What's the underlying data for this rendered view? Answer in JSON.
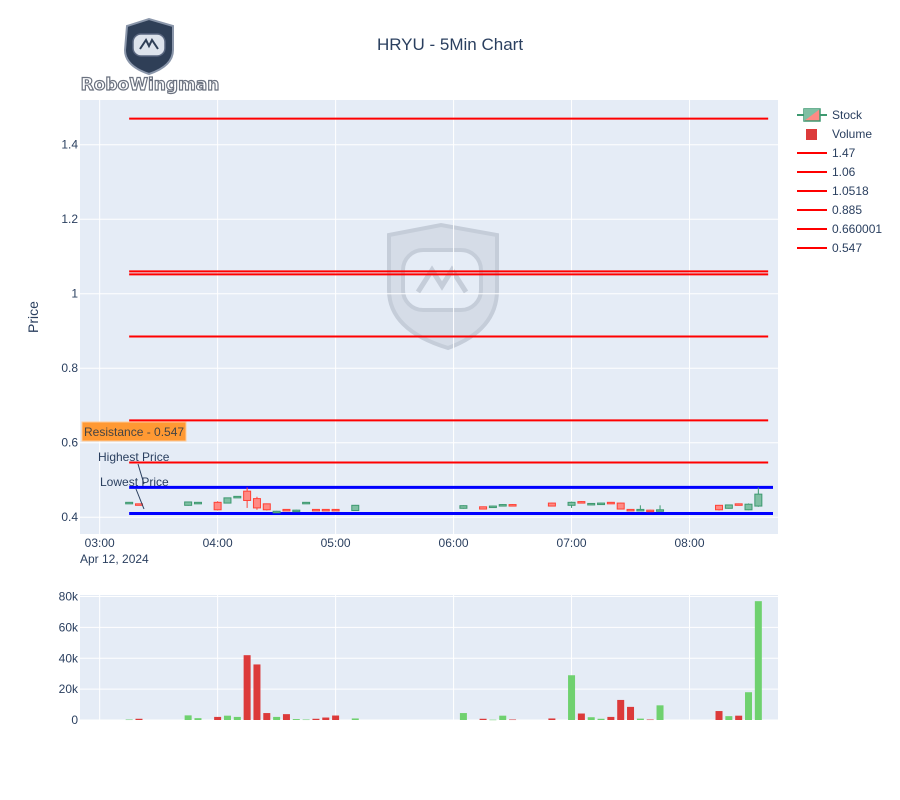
{
  "title": "HRYU - 5Min Chart",
  "logo": {
    "text": "RoboWingman",
    "icon": "astronaut-helmet-icon"
  },
  "colors": {
    "plot_bg": "#e5ecf6",
    "grid": "#ffffff",
    "up": "#3d9970",
    "down": "#ff4136",
    "vol_up": "#6fd16f",
    "vol_down": "#dc3a3a",
    "level_line": "#ff0000",
    "range_line": "#0000ff",
    "annotation_bg": "#ff9933"
  },
  "legend": [
    {
      "label": "Stock",
      "kind": "candle"
    },
    {
      "label": "Volume",
      "kind": "bar"
    },
    {
      "label": "1.47",
      "kind": "line"
    },
    {
      "label": "1.06",
      "kind": "line"
    },
    {
      "label": "1.0518",
      "kind": "line"
    },
    {
      "label": "0.885",
      "kind": "line"
    },
    {
      "label": "0.660001",
      "kind": "line"
    },
    {
      "label": "0.547",
      "kind": "line"
    }
  ],
  "annotations": {
    "resistance": "Resistance - 0.547",
    "highest": "Highest Price",
    "lowest": "Lowest Price"
  },
  "chart_data": {
    "type": "candlestick",
    "title": "HRYU - 5Min Chart",
    "ylabel": "Price",
    "date_label": "Apr 12, 2024",
    "x_range": [
      "02:50",
      "08:45"
    ],
    "x_ticks": [
      "03:00",
      "04:00",
      "05:00",
      "06:00",
      "07:00",
      "08:00"
    ],
    "y_range": [
      0.355,
      1.52
    ],
    "y_ticks": [
      {
        "v": 0.4,
        "label": "0.4"
      },
      {
        "v": 0.6,
        "label": "0.6"
      },
      {
        "v": 0.8,
        "label": "0.8"
      },
      {
        "v": 1.0,
        "label": "1"
      },
      {
        "v": 1.2,
        "label": "1.2"
      },
      {
        "v": 1.4,
        "label": "1.4"
      }
    ],
    "levels": [
      1.47,
      1.06,
      1.0518,
      0.885,
      0.660001,
      0.547
    ],
    "levels_span": [
      "03:15",
      "08:40"
    ],
    "highest_price": 0.48,
    "lowest_price": 0.41,
    "candles": [
      {
        "t": "03:15",
        "o": 0.44,
        "h": 0.441,
        "c": 0.44,
        "l": 0.439,
        "v": 300
      },
      {
        "t": "03:20",
        "o": 0.436,
        "h": 0.437,
        "c": 0.434,
        "l": 0.433,
        "v": 800
      },
      {
        "t": "03:45",
        "o": 0.432,
        "h": 0.442,
        "c": 0.441,
        "l": 0.431,
        "v": 3000
      },
      {
        "t": "03:50",
        "o": 0.44,
        "h": 0.441,
        "c": 0.44,
        "l": 0.439,
        "v": 1200
      },
      {
        "t": "04:00",
        "o": 0.44,
        "h": 0.443,
        "c": 0.42,
        "l": 0.418,
        "v": 2000
      },
      {
        "t": "04:05",
        "o": 0.438,
        "h": 0.453,
        "c": 0.452,
        "l": 0.437,
        "v": 2800
      },
      {
        "t": "04:10",
        "o": 0.455,
        "h": 0.457,
        "c": 0.456,
        "l": 0.454,
        "v": 2000
      },
      {
        "t": "04:15",
        "o": 0.47,
        "h": 0.48,
        "c": 0.445,
        "l": 0.425,
        "v": 42000
      },
      {
        "t": "04:20",
        "o": 0.45,
        "h": 0.455,
        "c": 0.425,
        "l": 0.42,
        "v": 36000
      },
      {
        "t": "04:25",
        "o": 0.436,
        "h": 0.437,
        "c": 0.42,
        "l": 0.418,
        "v": 4500
      },
      {
        "t": "04:30",
        "o": 0.415,
        "h": 0.417,
        "c": 0.416,
        "l": 0.414,
        "v": 2000
      },
      {
        "t": "04:35",
        "o": 0.421,
        "h": 0.422,
        "c": 0.418,
        "l": 0.417,
        "v": 3800
      },
      {
        "t": "04:40",
        "o": 0.418,
        "h": 0.42,
        "c": 0.419,
        "l": 0.417,
        "v": 600
      },
      {
        "t": "04:45",
        "o": 0.44,
        "h": 0.441,
        "c": 0.44,
        "l": 0.439,
        "v": 300
      },
      {
        "t": "04:50",
        "o": 0.421,
        "h": 0.422,
        "c": 0.418,
        "l": 0.417,
        "v": 800
      },
      {
        "t": "04:55",
        "o": 0.421,
        "h": 0.422,
        "c": 0.418,
        "l": 0.417,
        "v": 1600
      },
      {
        "t": "05:00",
        "o": 0.421,
        "h": 0.422,
        "c": 0.418,
        "l": 0.417,
        "v": 2900
      },
      {
        "t": "05:10",
        "o": 0.418,
        "h": 0.433,
        "c": 0.432,
        "l": 0.417,
        "v": 1000
      },
      {
        "t": "06:05",
        "o": 0.424,
        "h": 0.432,
        "c": 0.431,
        "l": 0.423,
        "v": 4500
      },
      {
        "t": "06:15",
        "o": 0.428,
        "h": 0.429,
        "c": 0.422,
        "l": 0.421,
        "v": 800
      },
      {
        "t": "06:20",
        "o": 0.43,
        "h": 0.431,
        "c": 0.43,
        "l": 0.429,
        "v": 200
      },
      {
        "t": "06:25",
        "o": 0.433,
        "h": 0.435,
        "c": 0.434,
        "l": 0.432,
        "v": 2800
      },
      {
        "t": "06:30",
        "o": 0.434,
        "h": 0.435,
        "c": 0.432,
        "l": 0.431,
        "v": 300
      },
      {
        "t": "06:50",
        "o": 0.438,
        "h": 0.439,
        "c": 0.43,
        "l": 0.429,
        "v": 1000
      },
      {
        "t": "07:00",
        "o": 0.432,
        "h": 0.442,
        "c": 0.44,
        "l": 0.425,
        "v": 29000
      },
      {
        "t": "07:05",
        "o": 0.442,
        "h": 0.443,
        "c": 0.438,
        "l": 0.437,
        "v": 4200
      },
      {
        "t": "07:10",
        "o": 0.437,
        "h": 0.438,
        "c": 0.437,
        "l": 0.436,
        "v": 1800
      },
      {
        "t": "07:15",
        "o": 0.438,
        "h": 0.439,
        "c": 0.438,
        "l": 0.437,
        "v": 800
      },
      {
        "t": "07:20",
        "o": 0.44,
        "h": 0.441,
        "c": 0.438,
        "l": 0.437,
        "v": 2000
      },
      {
        "t": "07:25",
        "o": 0.438,
        "h": 0.439,
        "c": 0.422,
        "l": 0.421,
        "v": 13000
      },
      {
        "t": "07:30",
        "o": 0.421,
        "h": 0.422,
        "c": 0.418,
        "l": 0.417,
        "v": 8500
      },
      {
        "t": "07:35",
        "o": 0.42,
        "h": 0.432,
        "c": 0.421,
        "l": 0.417,
        "v": 900
      },
      {
        "t": "07:40",
        "o": 0.419,
        "h": 0.42,
        "c": 0.418,
        "l": 0.417,
        "v": 300
      },
      {
        "t": "07:45",
        "o": 0.418,
        "h": 0.432,
        "c": 0.42,
        "l": 0.416,
        "v": 9500
      },
      {
        "t": "08:15",
        "o": 0.432,
        "h": 0.433,
        "c": 0.42,
        "l": 0.418,
        "v": 5800
      },
      {
        "t": "08:20",
        "o": 0.424,
        "h": 0.434,
        "c": 0.433,
        "l": 0.423,
        "v": 2500
      },
      {
        "t": "08:25",
        "o": 0.436,
        "h": 0.437,
        "c": 0.433,
        "l": 0.432,
        "v": 2800
      },
      {
        "t": "08:30",
        "o": 0.42,
        "h": 0.437,
        "c": 0.435,
        "l": 0.419,
        "v": 18000
      },
      {
        "t": "08:35",
        "o": 0.43,
        "h": 0.48,
        "c": 0.462,
        "l": 0.428,
        "v": 77000
      }
    ],
    "volume_range": [
      0,
      81000
    ],
    "volume_ticks": [
      {
        "v": 0,
        "label": "0"
      },
      {
        "v": 20000,
        "label": "20k"
      },
      {
        "v": 40000,
        "label": "40k"
      },
      {
        "v": 60000,
        "label": "60k"
      },
      {
        "v": 80000,
        "label": "80k"
      }
    ]
  }
}
